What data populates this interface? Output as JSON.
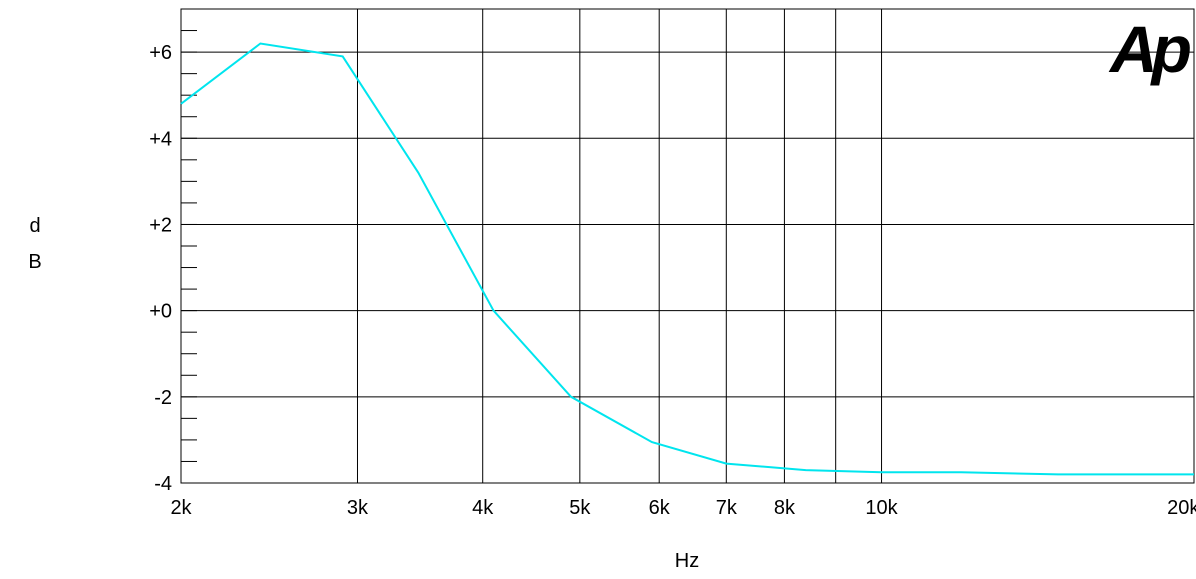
{
  "chart_data": {
    "type": "line",
    "xscale": "log",
    "xlim": [
      2000,
      20500
    ],
    "ylim": [
      -4,
      7
    ],
    "xlabel": "Hz",
    "ylabel": "dB",
    "xticks": [
      {
        "value": 2000,
        "label": "2k"
      },
      {
        "value": 3000,
        "label": "3k"
      },
      {
        "value": 4000,
        "label": "4k"
      },
      {
        "value": 5000,
        "label": "5k"
      },
      {
        "value": 6000,
        "label": "6k"
      },
      {
        "value": 7000,
        "label": "7k"
      },
      {
        "value": 8000,
        "label": "8k"
      },
      {
        "value": 10000,
        "label": "10k"
      },
      {
        "value": 20000,
        "label": "20k"
      }
    ],
    "xgrid": [
      3000,
      4000,
      5000,
      6000,
      7000,
      8000,
      9000,
      10000
    ],
    "yticks": [
      {
        "value": -4,
        "label": "-4"
      },
      {
        "value": -2,
        "label": "-2"
      },
      {
        "value": 0,
        "label": "+0"
      },
      {
        "value": 2,
        "label": "+2"
      },
      {
        "value": 4,
        "label": "+4"
      },
      {
        "value": 6,
        "label": "+6"
      }
    ],
    "yminor_step": 0.5,
    "grid": true,
    "series": [
      {
        "color": "#00e5ee",
        "x": [
          2000,
          2400,
          2900,
          3450,
          4100,
          4900,
          5900,
          7000,
          8400,
          10000,
          12000,
          15000,
          20500
        ],
        "y": [
          4.8,
          6.2,
          5.9,
          3.2,
          0.0,
          -2.0,
          -3.05,
          -3.55,
          -3.7,
          -3.75,
          -3.75,
          -3.8,
          -3.8
        ]
      }
    ]
  },
  "logo": {
    "text": "Ap",
    "color": "#1f22e6"
  }
}
